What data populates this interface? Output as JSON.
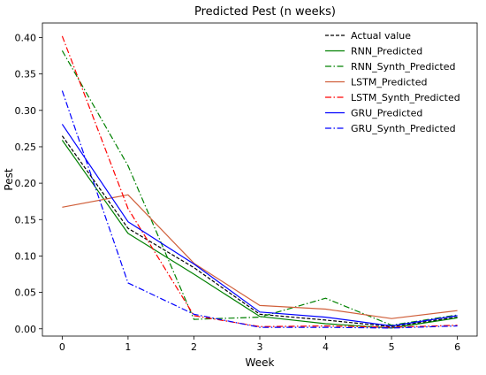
{
  "chart_data": {
    "type": "line",
    "title": "Predicted Pest (n weeks)",
    "xlabel": "Week",
    "ylabel": "Pest",
    "x": [
      0,
      1,
      2,
      3,
      4,
      5,
      6
    ],
    "x_ticks": [
      "0",
      "1",
      "2",
      "3",
      "4",
      "5",
      "6"
    ],
    "y_ticks": [
      "0.00",
      "0.05",
      "0.10",
      "0.15",
      "0.20",
      "0.25",
      "0.30",
      "0.35",
      "0.40"
    ],
    "xlim": [
      -0.3,
      6.3
    ],
    "ylim": [
      -0.01,
      0.42
    ],
    "grid": false,
    "legend_position": "top-right",
    "series": [
      {
        "name": "Actual value",
        "color": "#000000",
        "style": "dashed",
        "values": [
          0.265,
          0.138,
          0.084,
          0.02,
          0.012,
          0.003,
          0.016
        ]
      },
      {
        "name": "RNN_Predicted",
        "color": "#008000",
        "style": "solid",
        "values": [
          0.259,
          0.131,
          0.075,
          0.017,
          0.007,
          0.001,
          0.015
        ]
      },
      {
        "name": "RNN_Synth_Predicted",
        "color": "#008000",
        "style": "dashdot",
        "values": [
          0.382,
          0.224,
          0.013,
          0.016,
          0.042,
          0.005,
          0.019
        ]
      },
      {
        "name": "LSTM_Predicted",
        "color": "#d05f3a",
        "style": "solid",
        "values": [
          0.167,
          0.184,
          0.09,
          0.032,
          0.027,
          0.014,
          0.025
        ]
      },
      {
        "name": "LSTM_Synth_Predicted",
        "color": "#ff0000",
        "style": "dashdot",
        "values": [
          0.402,
          0.165,
          0.018,
          0.003,
          0.004,
          0.002,
          0.005
        ]
      },
      {
        "name": "GRU_Predicted",
        "color": "#0000ff",
        "style": "solid",
        "values": [
          0.281,
          0.147,
          0.089,
          0.023,
          0.016,
          0.004,
          0.018
        ]
      },
      {
        "name": "GRU_Synth_Predicted",
        "color": "#0000ff",
        "style": "dashdot",
        "values": [
          0.327,
          0.063,
          0.02,
          0.002,
          0.002,
          0.001,
          0.004
        ]
      }
    ]
  }
}
